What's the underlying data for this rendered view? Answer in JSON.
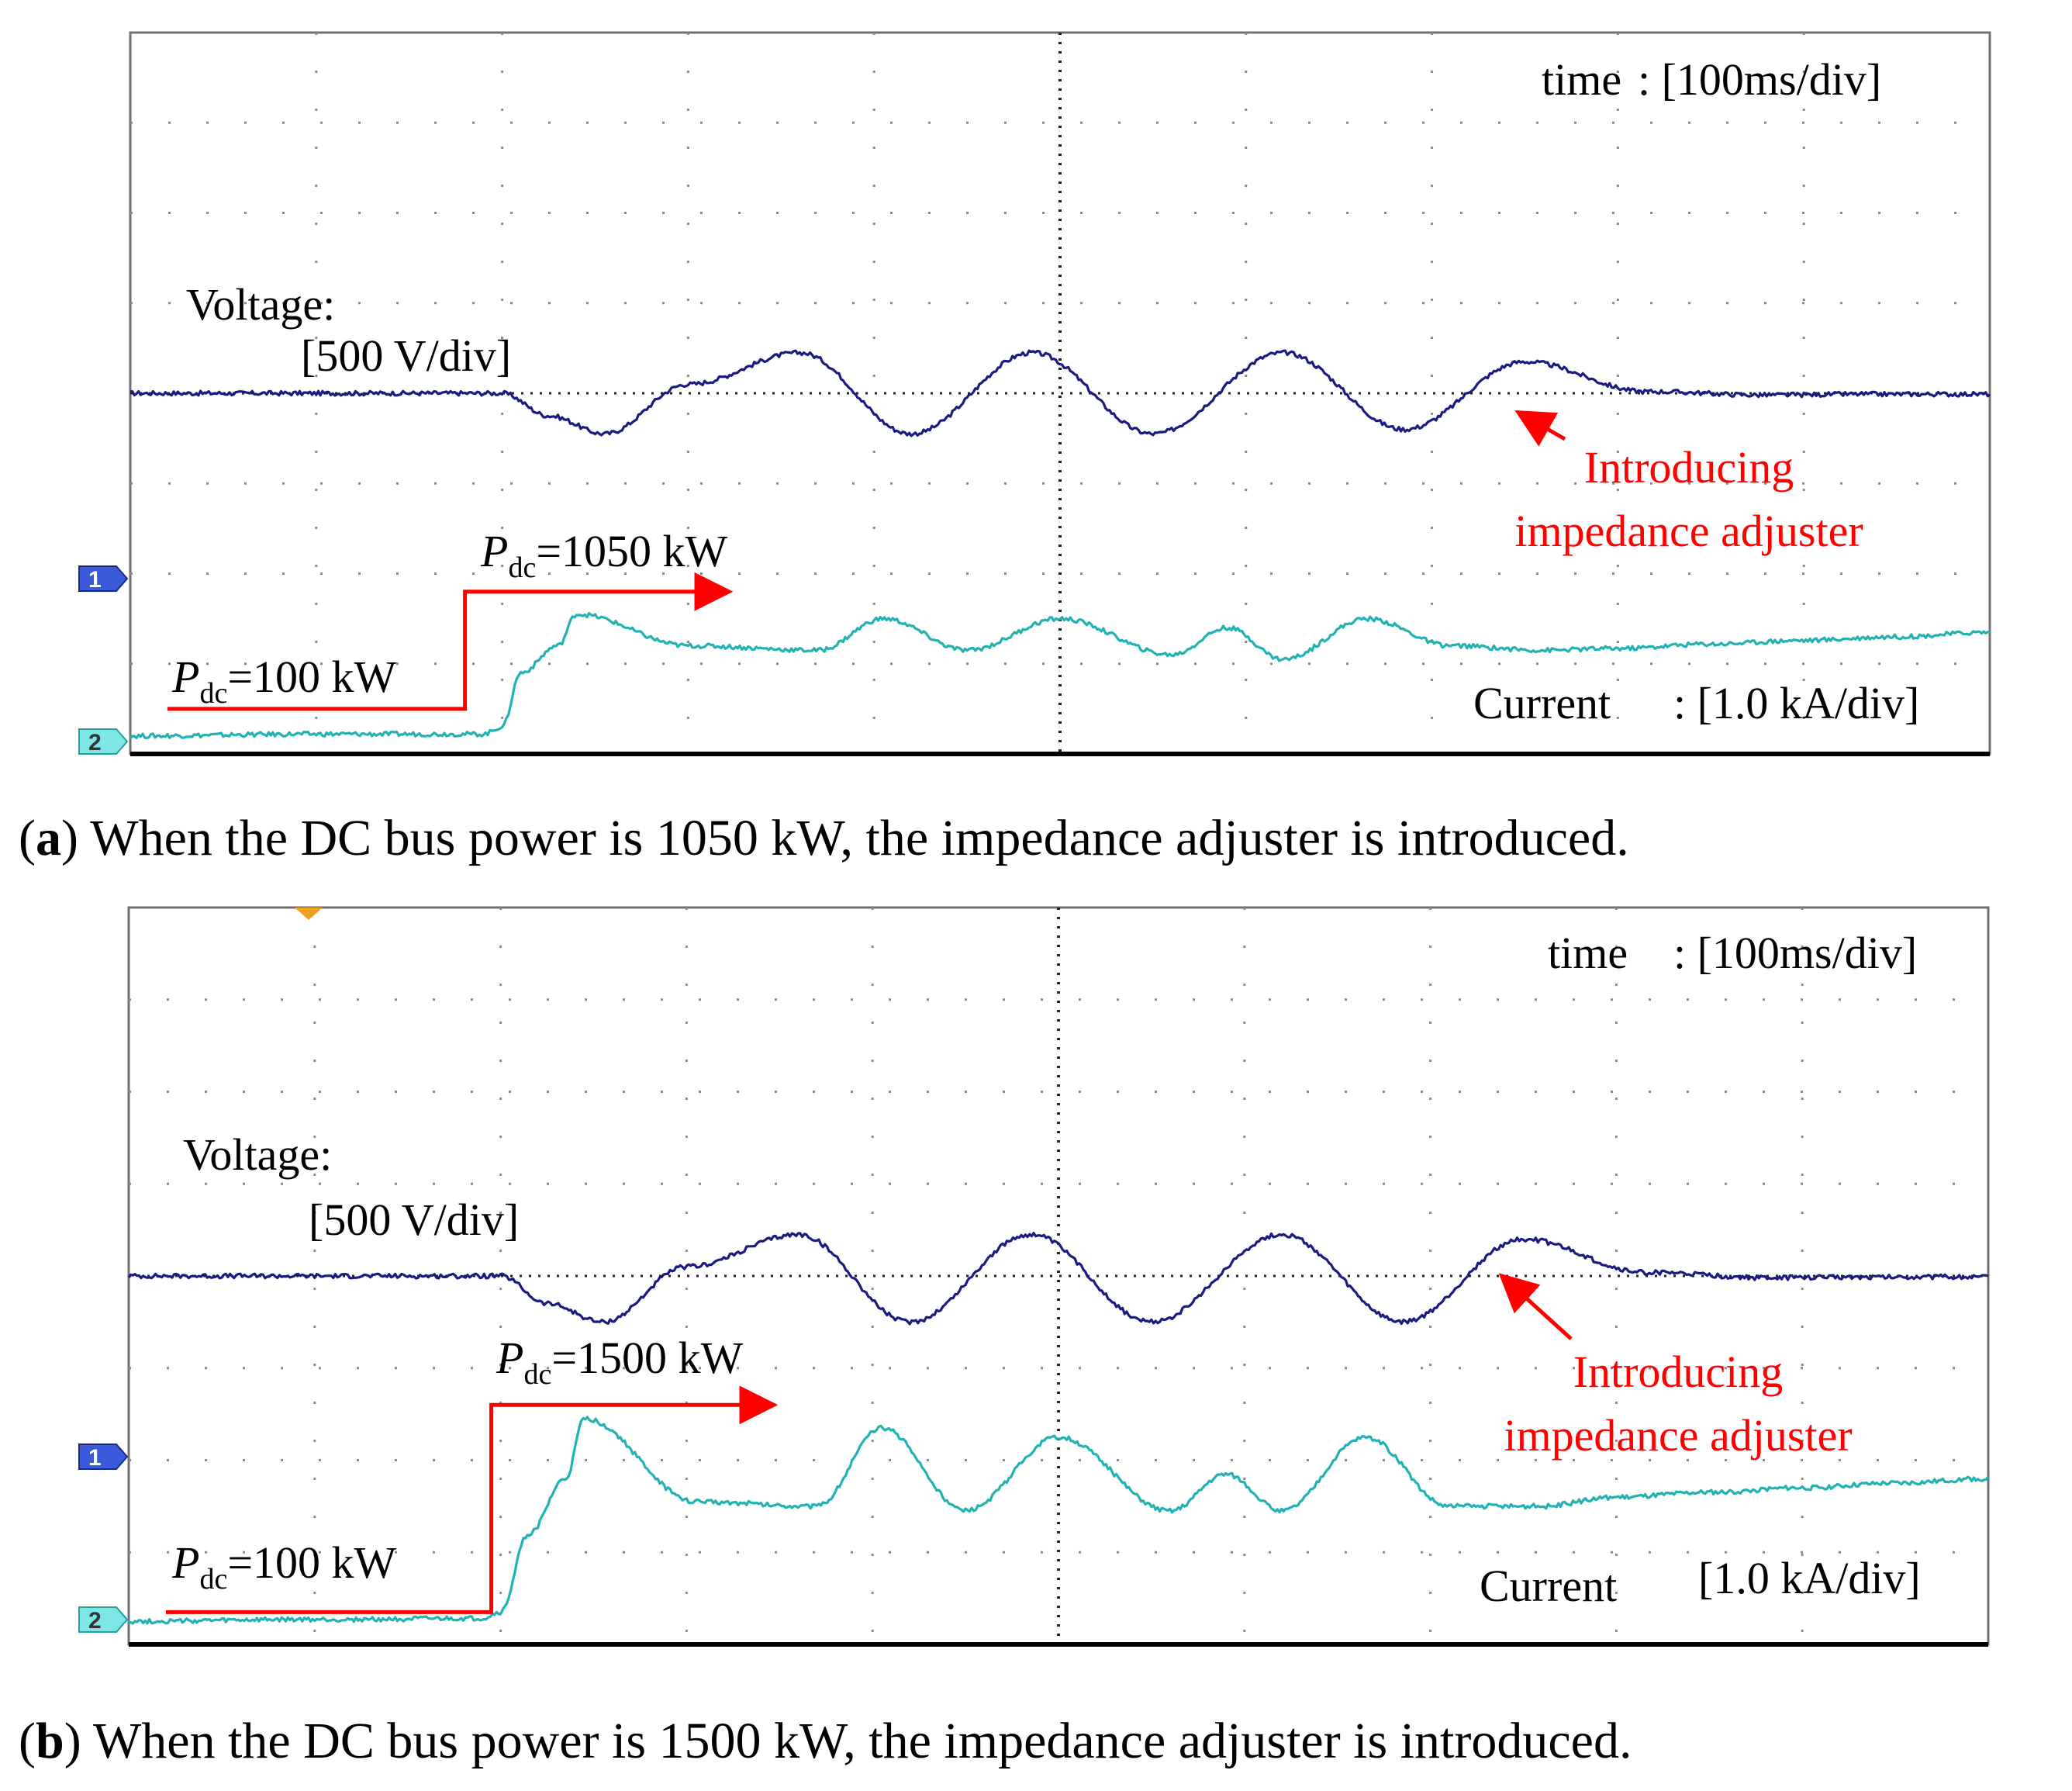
{
  "chart_data": [
    {
      "type": "line",
      "caption_letter": "a",
      "caption_text": "When the DC bus power is 1050 kW, the impedance adjuster is introduced.",
      "time_label": "time",
      "time_scale": ": [100ms/div]",
      "voltage_label": "Voltage:",
      "voltage_scale": "[500 V/div]",
      "current_label": "Current",
      "current_scale": ": [1.0 kA/div]",
      "annotation_line1": "Introducing",
      "annotation_line2": "impedance adjuster",
      "p_sym": "P",
      "p_sub": "dc",
      "p_low": "=100 kW",
      "p_high": "=1050 kW",
      "channel_1": "1",
      "channel_2": "2",
      "grid": true,
      "x_range_div": [
        0,
        10
      ],
      "y_range_div": [
        0,
        8
      ],
      "series": [
        {
          "name": "Voltage",
          "color": "#1a1a80",
          "x_div": [
            0,
            1.0,
            1.9,
            2.0,
            2.25,
            2.55,
            3.0,
            3.6,
            4.2,
            4.85,
            5.5,
            6.2,
            6.85,
            7.5,
            8.15,
            8.8,
            9.3,
            10.0
          ],
          "y_div": [
            4.0,
            4.0,
            4.0,
            4.0,
            3.75,
            3.55,
            4.1,
            4.45,
            3.55,
            4.45,
            3.55,
            4.45,
            3.6,
            4.35,
            4.02,
            3.98,
            3.99,
            3.99
          ]
        },
        {
          "name": "Current",
          "color": "#22b2b2",
          "x_div": [
            0,
            1.0,
            1.9,
            2.0,
            2.1,
            2.3,
            2.4,
            3.0,
            3.7,
            4.05,
            4.5,
            5.0,
            5.6,
            5.9,
            6.2,
            6.65,
            7.1,
            7.6,
            8.0,
            8.5,
            9.0,
            9.5,
            10.0
          ],
          "y_div": [
            0.2,
            0.22,
            0.22,
            0.3,
            0.9,
            1.2,
            1.55,
            1.2,
            1.15,
            1.5,
            1.15,
            1.5,
            1.1,
            1.4,
            1.05,
            1.5,
            1.2,
            1.15,
            1.17,
            1.22,
            1.26,
            1.3,
            1.35
          ]
        },
        {
          "name": "Pdc",
          "color": "#ff0000",
          "x_div": [
            0.2,
            1.8,
            1.8,
            3.2
          ],
          "y_div": [
            0.5,
            0.5,
            1.8,
            1.8
          ]
        }
      ]
    },
    {
      "type": "line",
      "caption_letter": "b",
      "caption_text": "When the DC bus power is 1500 kW, the impedance adjuster is introduced.",
      "time_label": "time",
      "time_scale": ": [100ms/div]",
      "voltage_label": "Voltage:",
      "voltage_scale": "[500 V/div]",
      "current_label": "Current",
      "current_scale": "[1.0 kA/div]",
      "annotation_line1": "Introducing",
      "annotation_line2": "impedance adjuster",
      "p_sym": "P",
      "p_sub": "dc",
      "p_low": "=100 kW",
      "p_high": "=1500 kW",
      "channel_1": "1",
      "channel_2": "2",
      "grid": true,
      "x_range_div": [
        0,
        10
      ],
      "y_range_div": [
        0,
        8
      ],
      "series": [
        {
          "name": "Voltage",
          "color": "#1a1a80",
          "x_div": [
            0,
            1.0,
            1.9,
            2.0,
            2.25,
            2.55,
            3.0,
            3.6,
            4.2,
            4.85,
            5.5,
            6.2,
            6.85,
            7.5,
            8.15,
            8.8,
            9.3,
            10.0
          ],
          "y_div": [
            4.0,
            4.0,
            4.0,
            4.0,
            3.7,
            3.5,
            4.1,
            4.45,
            3.5,
            4.45,
            3.5,
            4.45,
            3.5,
            4.4,
            4.04,
            3.98,
            3.99,
            3.99
          ]
        },
        {
          "name": "Current",
          "color": "#22b2b2",
          "x_div": [
            0,
            1.0,
            1.9,
            2.0,
            2.15,
            2.35,
            2.45,
            3.05,
            3.7,
            4.05,
            4.5,
            5.0,
            5.6,
            5.9,
            6.2,
            6.65,
            7.1,
            7.6,
            8.0,
            8.5,
            9.0,
            9.5,
            10.0
          ],
          "y_div": [
            0.25,
            0.27,
            0.28,
            0.35,
            1.2,
            1.8,
            2.45,
            1.55,
            1.5,
            2.35,
            1.45,
            2.25,
            1.45,
            1.85,
            1.45,
            2.25,
            1.5,
            1.5,
            1.6,
            1.65,
            1.7,
            1.75,
            1.8
          ]
        },
        {
          "name": "Pdc",
          "color": "#ff0000",
          "x_div": [
            0.2,
            1.95,
            1.95,
            3.45
          ],
          "y_div": [
            0.35,
            0.35,
            2.6,
            2.6
          ]
        }
      ]
    }
  ]
}
